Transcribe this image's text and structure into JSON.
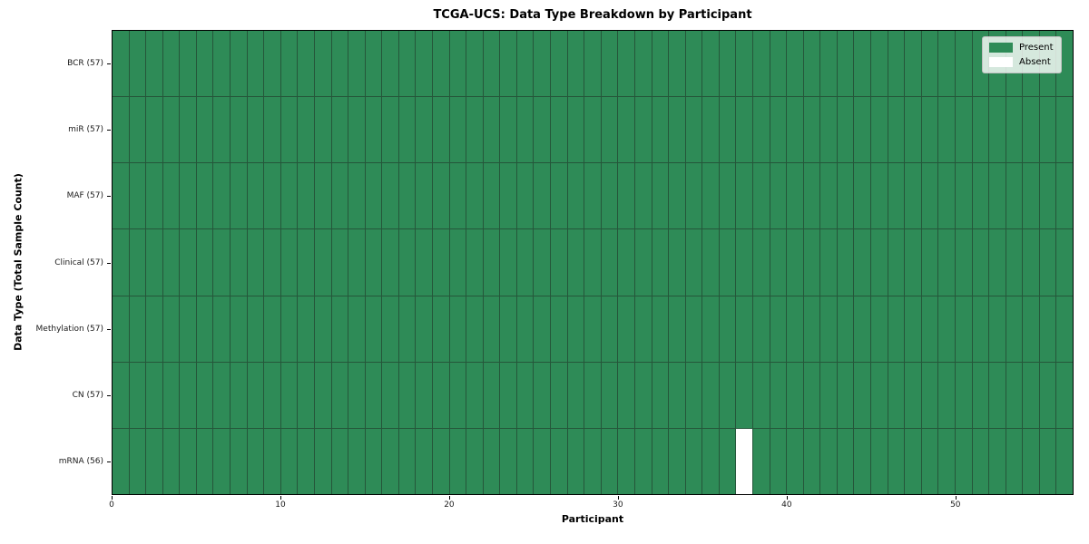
{
  "chart_data": {
    "type": "heatmap",
    "title": "TCGA-UCS: Data Type Breakdown by Participant",
    "xlabel": "Participant",
    "ylabel": "Data Type (Total Sample Count)",
    "n_participants": 57,
    "x_range": [
      0,
      57
    ],
    "x_ticks": [
      0,
      10,
      20,
      30,
      40,
      50
    ],
    "grid": "cell-borders",
    "rows": [
      {
        "label": "BCR (57)",
        "data_type": "BCR",
        "present_count": 57,
        "absent_participants": []
      },
      {
        "label": "miR (57)",
        "data_type": "miR",
        "present_count": 57,
        "absent_participants": []
      },
      {
        "label": "MAF (57)",
        "data_type": "MAF",
        "present_count": 57,
        "absent_participants": []
      },
      {
        "label": "Clinical (57)",
        "data_type": "Clinical",
        "present_count": 57,
        "absent_participants": []
      },
      {
        "label": "Methylation (57)",
        "data_type": "Methylation",
        "present_count": 57,
        "absent_participants": []
      },
      {
        "label": "CN (57)",
        "data_type": "CN",
        "present_count": 57,
        "absent_participants": []
      },
      {
        "label": "mRNA (56)",
        "data_type": "mRNA",
        "present_count": 56,
        "absent_participants": [
          37
        ]
      }
    ],
    "legend": {
      "position": "upper right",
      "entries": [
        {
          "label": "Present",
          "color": "#2e8b57"
        },
        {
          "label": "Absent",
          "color": "#ffffff"
        }
      ]
    },
    "colors": {
      "present": "#2e8b57",
      "absent": "#ffffff",
      "grid_line": "#25563a",
      "spine": "#000000"
    }
  }
}
